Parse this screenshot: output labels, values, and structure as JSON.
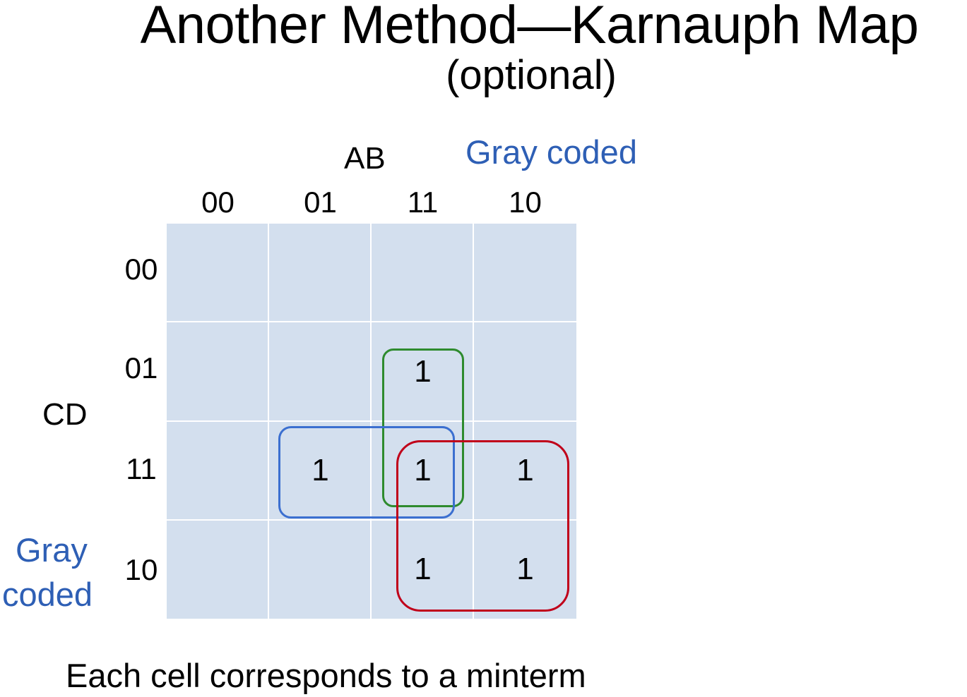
{
  "title": "Another Method—Karnauph Map",
  "subtitle": "(optional)",
  "kmap": {
    "col_var": "AB",
    "row_var": "CD",
    "col_note": "Gray coded",
    "row_note_line1": "Gray",
    "row_note_line2": "coded",
    "col_headers": [
      "00",
      "01",
      "11",
      "10"
    ],
    "row_headers": [
      "00",
      "01",
      "11",
      "10"
    ],
    "cells": [
      [
        "",
        "",
        "",
        ""
      ],
      [
        "",
        "",
        "1",
        ""
      ],
      [
        "",
        "1",
        "1",
        "1"
      ],
      [
        "",
        "",
        "1",
        "1"
      ]
    ],
    "groups": [
      {
        "name": "green-group",
        "color": "#2e8b2e",
        "cells": [
          [
            1,
            2
          ],
          [
            2,
            2
          ]
        ]
      },
      {
        "name": "blue-group",
        "color": "#3b6fd0",
        "cells": [
          [
            2,
            1
          ],
          [
            2,
            2
          ]
        ]
      },
      {
        "name": "red-group",
        "color": "#c0001a",
        "cells": [
          [
            2,
            2
          ],
          [
            2,
            3
          ],
          [
            3,
            2
          ],
          [
            3,
            3
          ]
        ]
      }
    ]
  },
  "colors": {
    "grid_fill": "#d3dfee",
    "note_blue": "#2e5fb5"
  },
  "footer": "Each cell corresponds to a minterm"
}
